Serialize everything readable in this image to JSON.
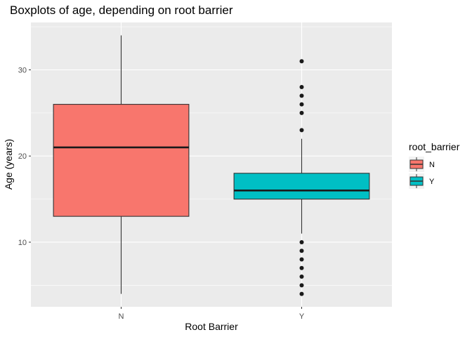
{
  "chart_data": {
    "type": "boxplot",
    "title": "Boxplots of age, depending on root barrier",
    "xlabel": "Root Barrier",
    "ylabel": "Age (years)",
    "ylim": [
      2.5,
      35.5
    ],
    "yticks": [
      10,
      20,
      30
    ],
    "grid": true,
    "legend": {
      "title": "root_barrier",
      "position": "right",
      "entries": [
        {
          "label": "N",
          "color": "#F8766D"
        },
        {
          "label": "Y",
          "color": "#00BFC4"
        }
      ]
    },
    "categories": [
      "N",
      "Y"
    ],
    "boxes": [
      {
        "category": "N",
        "color": "#F8766D",
        "min": 4,
        "q1": 13,
        "median": 21,
        "q3": 26,
        "max": 34,
        "outliers": []
      },
      {
        "category": "Y",
        "color": "#00BFC4",
        "min": 11,
        "q1": 15,
        "median": 16,
        "q3": 18,
        "max": 22,
        "outliers": [
          4,
          5,
          6,
          7,
          8,
          9,
          10,
          23,
          25,
          26,
          27,
          28,
          31
        ]
      }
    ]
  }
}
